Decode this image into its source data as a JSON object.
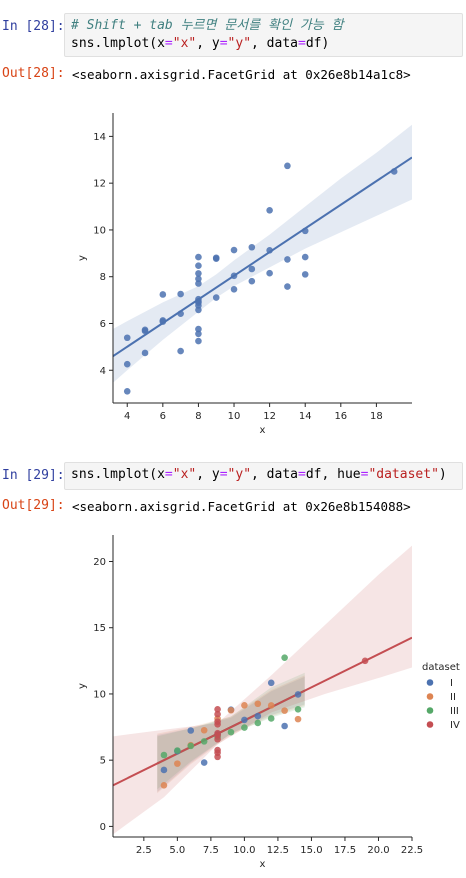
{
  "cells": [
    {
      "in_prompt": "In [28]:",
      "code_comment": "# Shift + tab 누르면 문서를 확인 가능 함",
      "code_parts": [
        "sns.lmplot(x",
        "=",
        "\"x\"",
        ", y",
        "=",
        "\"y\"",
        ", data",
        "=",
        "df)"
      ],
      "out_prompt": "Out[28]:",
      "output_text": "<seaborn.axisgrid.FacetGrid at 0x26e8b14a1c8>"
    },
    {
      "in_prompt": "In [29]:",
      "code_parts": [
        "sns.lmplot(x",
        "=",
        "\"x\"",
        ", y",
        "=",
        "\"y\"",
        ", data",
        "=",
        "df, hue",
        "=",
        "\"dataset\"",
        ")"
      ],
      "out_prompt": "Out[29]:",
      "output_text": "<seaborn.axisgrid.FacetGrid at 0x26e8b154088>"
    }
  ],
  "chart_data": [
    {
      "type": "scatter",
      "xlabel": "x",
      "ylabel": "y",
      "xlim": [
        3.2,
        20
      ],
      "ylim": [
        2.6,
        15
      ],
      "xticks": [
        4,
        6,
        8,
        10,
        12,
        14,
        16,
        18
      ],
      "yticks": [
        4,
        6,
        8,
        10,
        12,
        14
      ],
      "color": "#4c72b0",
      "regression": {
        "x": [
          2.8,
          20
        ],
        "y": [
          4.4,
          13.1
        ]
      },
      "ci_band": {
        "x": [
          2.8,
          4,
          6,
          8,
          9,
          10,
          12,
          14,
          16,
          18,
          20
        ],
        "lower": [
          3.2,
          4.0,
          5.3,
          6.5,
          7.1,
          7.6,
          8.4,
          9.2,
          9.9,
          10.6,
          11.3
        ],
        "upper": [
          5.6,
          6.1,
          6.9,
          7.6,
          8.1,
          8.7,
          9.8,
          11.0,
          12.2,
          13.3,
          14.5
        ]
      },
      "points": [
        {
          "x": 10,
          "y": 8.04
        },
        {
          "x": 8,
          "y": 6.95
        },
        {
          "x": 13,
          "y": 7.58
        },
        {
          "x": 9,
          "y": 8.81
        },
        {
          "x": 11,
          "y": 8.33
        },
        {
          "x": 14,
          "y": 9.96
        },
        {
          "x": 6,
          "y": 7.24
        },
        {
          "x": 4,
          "y": 4.26
        },
        {
          "x": 12,
          "y": 10.84
        },
        {
          "x": 7,
          "y": 4.82
        },
        {
          "x": 5,
          "y": 5.68
        },
        {
          "x": 10,
          "y": 9.14
        },
        {
          "x": 8,
          "y": 8.14
        },
        {
          "x": 13,
          "y": 8.74
        },
        {
          "x": 9,
          "y": 8.77
        },
        {
          "x": 11,
          "y": 9.26
        },
        {
          "x": 14,
          "y": 8.1
        },
        {
          "x": 6,
          "y": 6.13
        },
        {
          "x": 4,
          "y": 3.1
        },
        {
          "x": 12,
          "y": 9.13
        },
        {
          "x": 7,
          "y": 7.26
        },
        {
          "x": 5,
          "y": 4.74
        },
        {
          "x": 10,
          "y": 7.46
        },
        {
          "x": 8,
          "y": 6.77
        },
        {
          "x": 13,
          "y": 12.74
        },
        {
          "x": 9,
          "y": 7.11
        },
        {
          "x": 11,
          "y": 7.81
        },
        {
          "x": 14,
          "y": 8.84
        },
        {
          "x": 6,
          "y": 6.08
        },
        {
          "x": 4,
          "y": 5.39
        },
        {
          "x": 12,
          "y": 8.15
        },
        {
          "x": 7,
          "y": 6.42
        },
        {
          "x": 5,
          "y": 5.73
        },
        {
          "x": 8,
          "y": 6.58
        },
        {
          "x": 8,
          "y": 5.76
        },
        {
          "x": 8,
          "y": 7.71
        },
        {
          "x": 8,
          "y": 8.84
        },
        {
          "x": 8,
          "y": 8.47
        },
        {
          "x": 8,
          "y": 7.04
        },
        {
          "x": 8,
          "y": 5.25
        },
        {
          "x": 19,
          "y": 12.5
        },
        {
          "x": 8,
          "y": 5.56
        },
        {
          "x": 8,
          "y": 7.91
        },
        {
          "x": 8,
          "y": 6.89
        }
      ]
    },
    {
      "type": "scatter",
      "xlabel": "x",
      "ylabel": "y",
      "xlim": [
        0.2,
        22.5
      ],
      "ylim": [
        -0.8,
        22
      ],
      "xticks": [
        "2.5",
        "5.0",
        "7.5",
        "10.0",
        "12.5",
        "15.0",
        "17.5",
        "20.0",
        "22.5"
      ],
      "xtick_values": [
        2.5,
        5,
        7.5,
        10,
        12.5,
        15,
        17.5,
        20,
        22.5
      ],
      "yticks": [
        0,
        5,
        10,
        15,
        20
      ],
      "legend": {
        "title": "dataset",
        "placement": "right"
      },
      "series": [
        {
          "name": "I",
          "color": "#4c72b0",
          "regression": {
            "x": [
              3.5,
              14.5
            ],
            "y": [
              4.75,
              10.25
            ]
          },
          "ci_band": {
            "x": [
              3.5,
              6,
              9,
              12,
              14.5
            ],
            "lower": [
              2.6,
              4.8,
              7.0,
              8.4,
              9.2
            ],
            "upper": [
              6.9,
              7.4,
              8.2,
              10.2,
              11.3
            ]
          },
          "points": [
            {
              "x": 10,
              "y": 8.04
            },
            {
              "x": 8,
              "y": 6.95
            },
            {
              "x": 13,
              "y": 7.58
            },
            {
              "x": 9,
              "y": 8.81
            },
            {
              "x": 11,
              "y": 8.33
            },
            {
              "x": 14,
              "y": 9.96
            },
            {
              "x": 6,
              "y": 7.24
            },
            {
              "x": 4,
              "y": 4.26
            },
            {
              "x": 12,
              "y": 10.84
            },
            {
              "x": 7,
              "y": 4.82
            },
            {
              "x": 5,
              "y": 5.68
            }
          ]
        },
        {
          "name": "II",
          "color": "#dd8452",
          "regression": {
            "x": [
              3.5,
              14.5
            ],
            "y": [
              4.75,
              10.25
            ]
          },
          "ci_band": {
            "x": [
              3.5,
              6,
              9,
              12,
              14.5
            ],
            "lower": [
              2.5,
              4.7,
              6.9,
              8.3,
              9.1
            ],
            "upper": [
              7.0,
              7.5,
              8.3,
              10.3,
              11.4
            ]
          },
          "points": [
            {
              "x": 10,
              "y": 9.14
            },
            {
              "x": 8,
              "y": 8.14
            },
            {
              "x": 13,
              "y": 8.74
            },
            {
              "x": 9,
              "y": 8.77
            },
            {
              "x": 11,
              "y": 9.26
            },
            {
              "x": 14,
              "y": 8.1
            },
            {
              "x": 6,
              "y": 6.13
            },
            {
              "x": 4,
              "y": 3.1
            },
            {
              "x": 12,
              "y": 9.13
            },
            {
              "x": 7,
              "y": 7.26
            },
            {
              "x": 5,
              "y": 4.74
            }
          ]
        },
        {
          "name": "III",
          "color": "#55a868",
          "regression": {
            "x": [
              3.5,
              14.5
            ],
            "y": [
              4.75,
              10.25
            ]
          },
          "ci_band": {
            "x": [
              3.5,
              6,
              9,
              12,
              14.5
            ],
            "lower": [
              2.8,
              4.9,
              7.0,
              8.2,
              9.0
            ],
            "upper": [
              6.8,
              7.4,
              8.3,
              10.5,
              11.6
            ]
          },
          "points": [
            {
              "x": 10,
              "y": 7.46
            },
            {
              "x": 8,
              "y": 6.77
            },
            {
              "x": 13,
              "y": 12.74
            },
            {
              "x": 9,
              "y": 7.11
            },
            {
              "x": 11,
              "y": 7.81
            },
            {
              "x": 14,
              "y": 8.84
            },
            {
              "x": 6,
              "y": 6.08
            },
            {
              "x": 4,
              "y": 5.39
            },
            {
              "x": 12,
              "y": 8.15
            },
            {
              "x": 7,
              "y": 6.42
            },
            {
              "x": 5,
              "y": 5.73
            }
          ]
        },
        {
          "name": "IV",
          "color": "#c44e52",
          "regression": {
            "x": [
              0.2,
              22.5
            ],
            "y": [
              3.1,
              14.25
            ]
          },
          "ci_band": {
            "x": [
              0.2,
              4,
              8,
              12,
              16,
              20,
              22.5
            ],
            "lower": [
              -0.6,
              2.2,
              6.2,
              8.6,
              10.0,
              11.2,
              12.0
            ],
            "upper": [
              6.8,
              7.3,
              7.8,
              11.4,
              15.2,
              19.0,
              21.2
            ]
          },
          "points": [
            {
              "x": 8,
              "y": 6.58
            },
            {
              "x": 8,
              "y": 5.76
            },
            {
              "x": 8,
              "y": 7.71
            },
            {
              "x": 8,
              "y": 8.84
            },
            {
              "x": 8,
              "y": 8.47
            },
            {
              "x": 8,
              "y": 7.04
            },
            {
              "x": 8,
              "y": 5.25
            },
            {
              "x": 19,
              "y": 12.5
            },
            {
              "x": 8,
              "y": 5.56
            },
            {
              "x": 8,
              "y": 7.91
            },
            {
              "x": 8,
              "y": 6.89
            }
          ]
        }
      ]
    }
  ]
}
